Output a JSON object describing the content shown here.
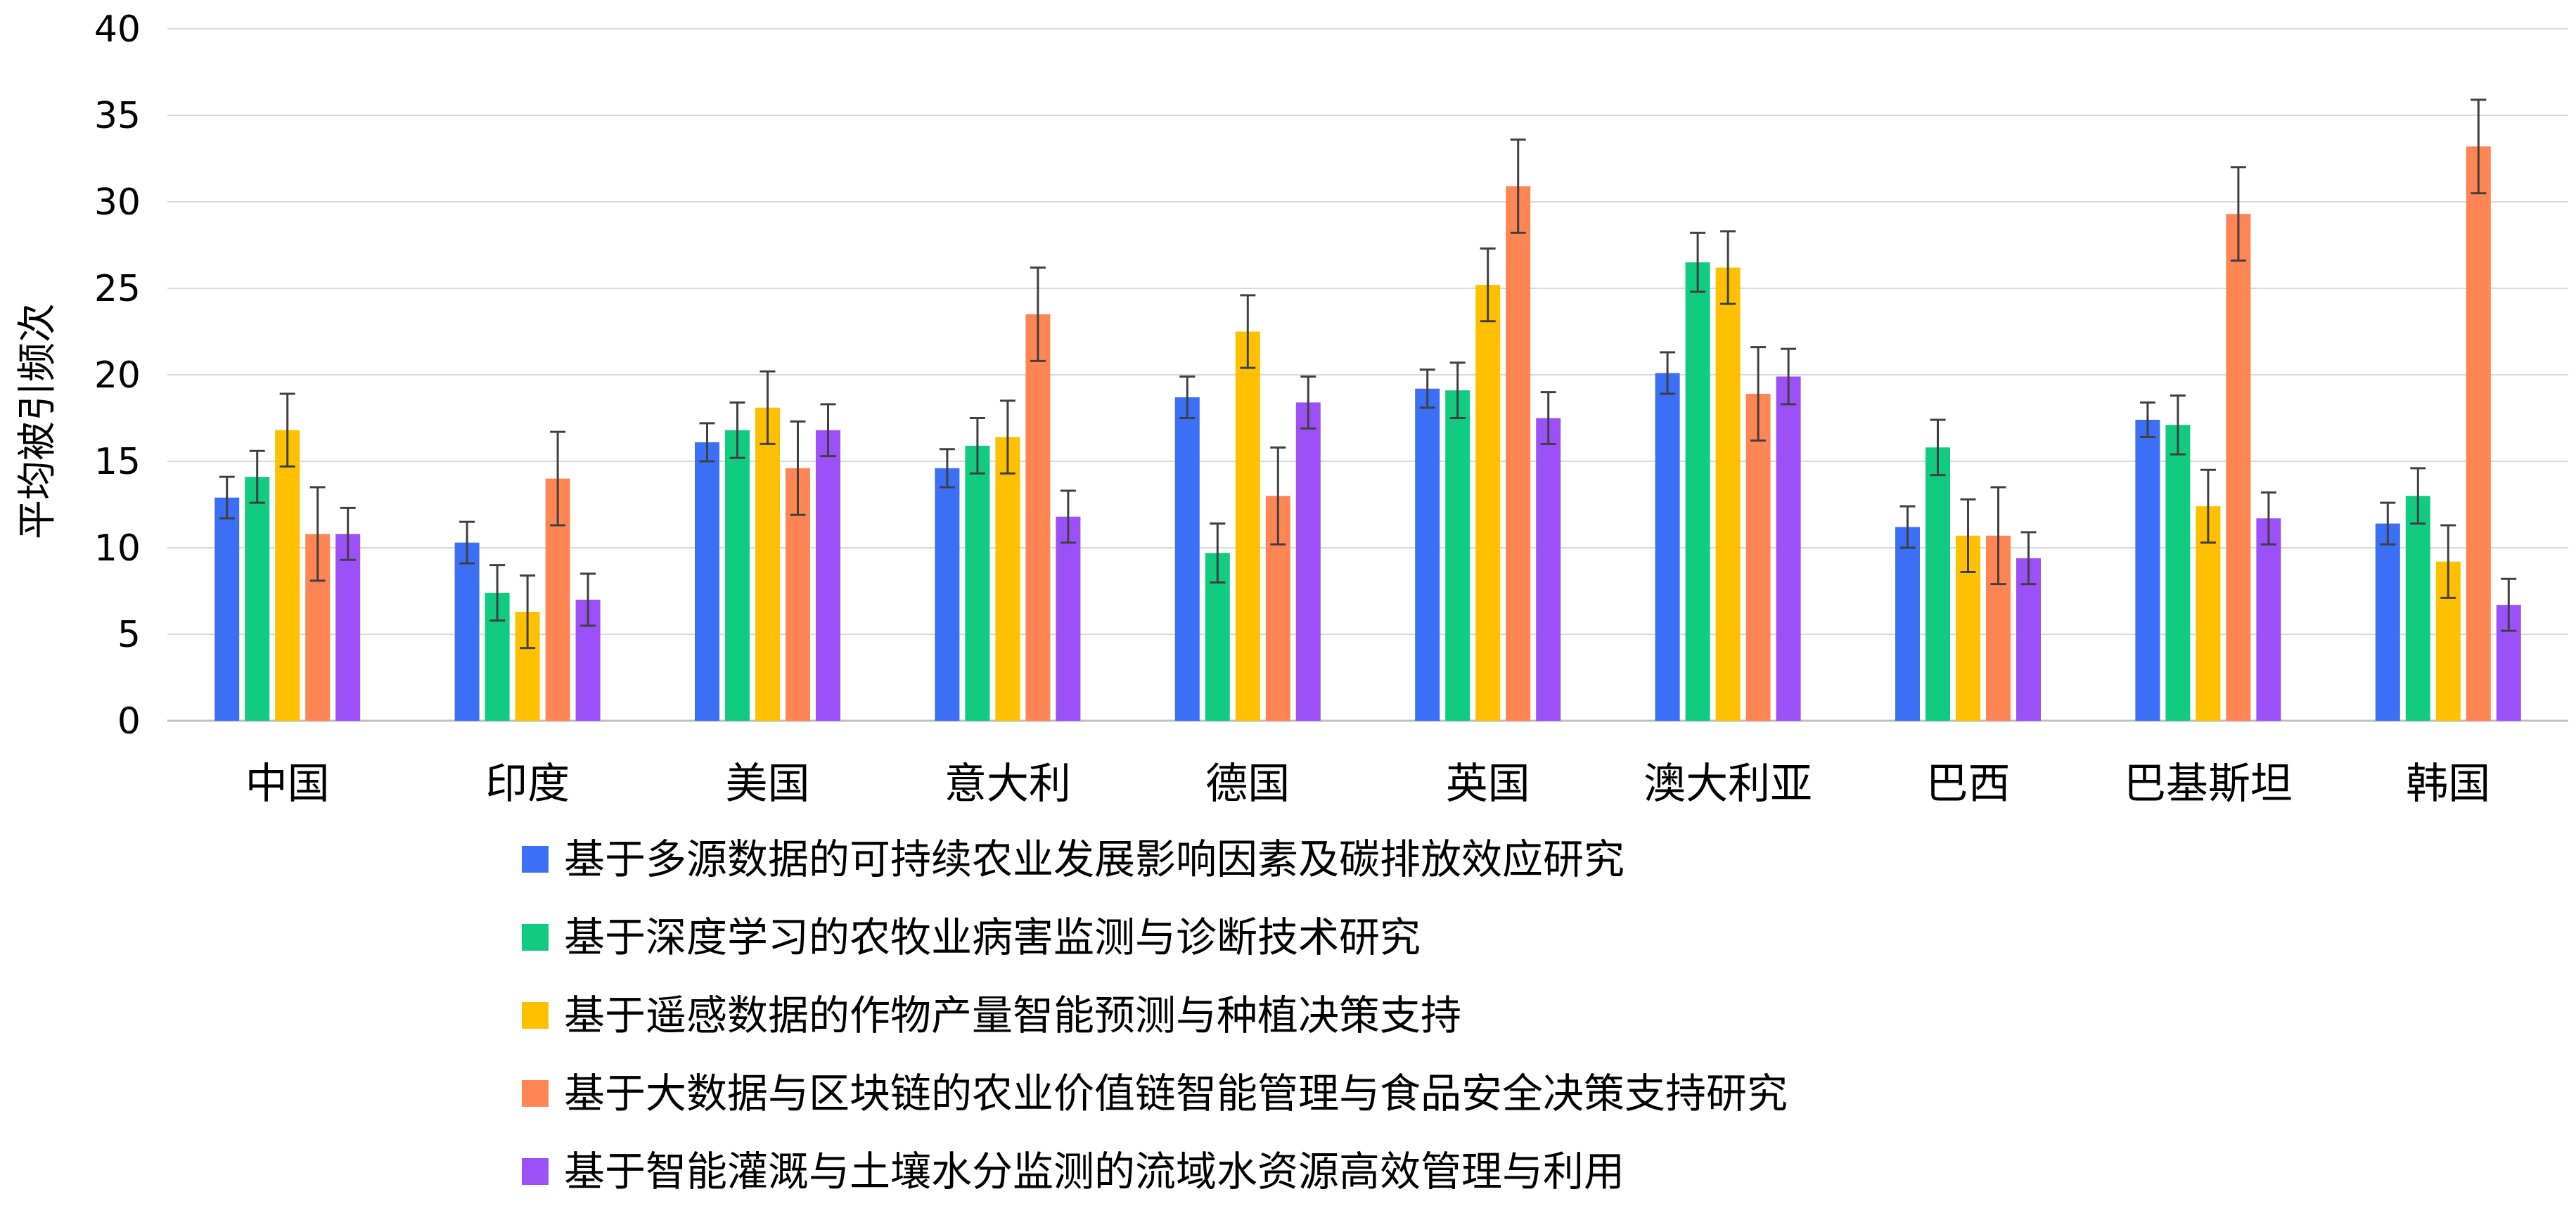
{
  "chart_data": {
    "type": "bar",
    "title": "",
    "xlabel": "",
    "ylabel": "平均被引频次",
    "ylim": [
      0,
      40
    ],
    "yticks": [
      0,
      5,
      10,
      15,
      20,
      25,
      30,
      35,
      40
    ],
    "grid": true,
    "legend_position": "bottom",
    "error_bars": true,
    "categories": [
      "中国",
      "印度",
      "美国",
      "意大利",
      "德国",
      "英国",
      "澳大利亚",
      "巴西",
      "巴基斯坦",
      "韩国"
    ],
    "series": [
      {
        "name": "基于多源数据的可持续农业发展影响因素及碳排放效应研究",
        "color": "#3B6FF5",
        "values": [
          12.9,
          10.3,
          16.1,
          14.6,
          18.7,
          19.2,
          20.1,
          11.2,
          17.4,
          11.4
        ],
        "errors": [
          1.2,
          1.2,
          1.1,
          1.1,
          1.2,
          1.1,
          1.2,
          1.2,
          1.0,
          1.2
        ]
      },
      {
        "name": "基于深度学习的农牧业病害监测与诊断技术研究",
        "color": "#11CC80",
        "values": [
          14.1,
          7.4,
          16.8,
          15.9,
          9.7,
          19.1,
          26.5,
          15.8,
          17.1,
          13.0
        ],
        "errors": [
          1.5,
          1.6,
          1.6,
          1.6,
          1.7,
          1.6,
          1.7,
          1.6,
          1.7,
          1.6
        ]
      },
      {
        "name": "基于遥感数据的作物产量智能预测与种植决策支持",
        "color": "#FFC000",
        "values": [
          16.8,
          6.3,
          18.1,
          16.4,
          22.5,
          25.2,
          26.2,
          10.7,
          12.4,
          9.2
        ],
        "errors": [
          2.1,
          2.1,
          2.1,
          2.1,
          2.1,
          2.1,
          2.1,
          2.1,
          2.1,
          2.1
        ]
      },
      {
        "name": "基于大数据与区块链的农业价值链智能管理与食品安全决策支持研究",
        "color": "#FF8654",
        "values": [
          10.8,
          14.0,
          14.6,
          23.5,
          13.0,
          30.9,
          18.9,
          10.7,
          29.3,
          33.2
        ],
        "errors": [
          2.7,
          2.7,
          2.7,
          2.7,
          2.8,
          2.7,
          2.7,
          2.8,
          2.7,
          2.7
        ]
      },
      {
        "name": "基于智能灌溉与土壤水分监测的流域水资源高效管理与利用",
        "color": "#9B51F7",
        "values": [
          10.8,
          7.0,
          16.8,
          11.8,
          18.4,
          17.5,
          19.9,
          9.4,
          11.7,
          6.7
        ],
        "errors": [
          1.5,
          1.5,
          1.5,
          1.5,
          1.5,
          1.5,
          1.6,
          1.5,
          1.5,
          1.5
        ]
      }
    ]
  }
}
